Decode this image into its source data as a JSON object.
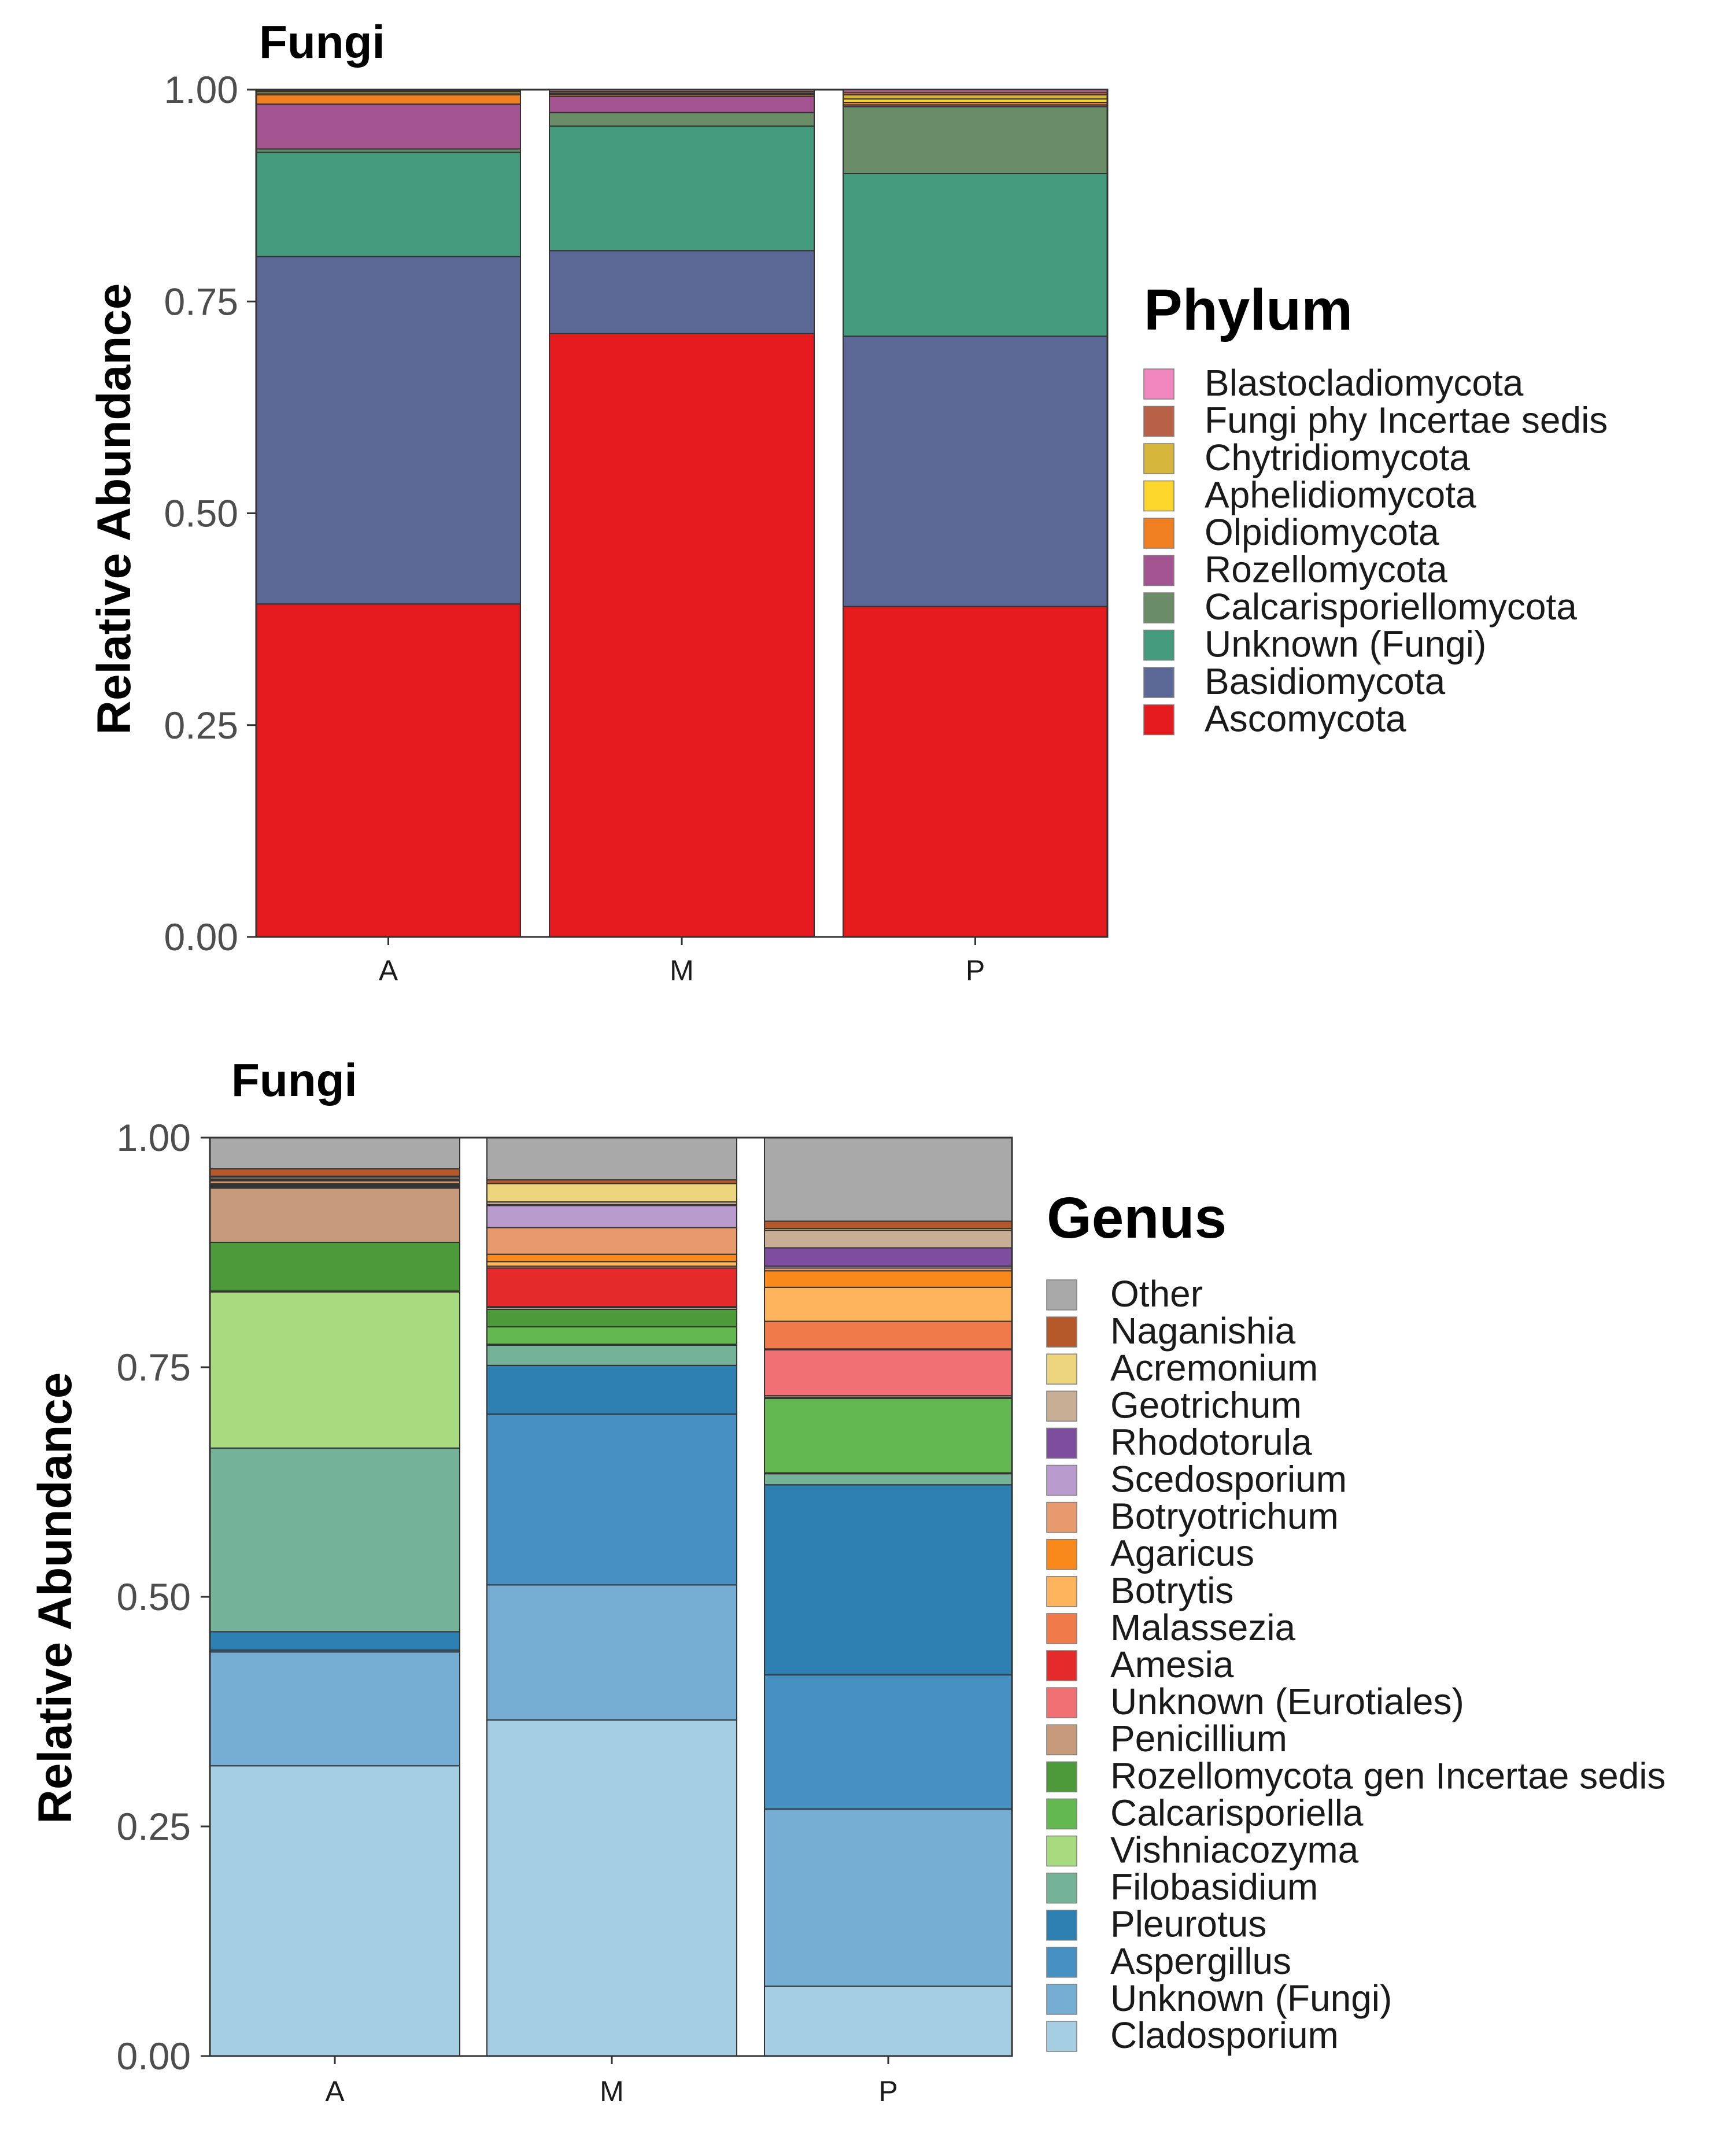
{
  "chart_data": [
    {
      "type": "bar",
      "stacked": true,
      "title": "Fungi",
      "ylabel": "Relative Abundance",
      "xlabel": "",
      "ylim": [
        0,
        1
      ],
      "yticks": [
        "0.00",
        "0.25",
        "0.50",
        "0.75",
        "1.00"
      ],
      "categories": [
        "A",
        "M",
        "P"
      ],
      "legend_title": "Phylum",
      "legend_position": "right",
      "series": [
        {
          "name": "Ascomycota",
          "color": "#E41A1C",
          "values": [
            0.393,
            0.712,
            0.39
          ]
        },
        {
          "name": "Basidiomycota",
          "color": "#5B6795",
          "values": [
            0.41,
            0.098,
            0.319
          ]
        },
        {
          "name": "Unknown (Fungi)",
          "color": "#449B7D",
          "values": [
            0.123,
            0.147,
            0.192
          ]
        },
        {
          "name": "Calcarisporiellomycota",
          "color": "#6A8C67",
          "values": [
            0.004,
            0.016,
            0.079
          ]
        },
        {
          "name": "Rozellomycota",
          "color": "#A25390",
          "values": [
            0.053,
            0.019,
            0.002
          ]
        },
        {
          "name": "Olpidiomycota",
          "color": "#F07F22",
          "values": [
            0.011,
            0.002,
            0.003
          ]
        },
        {
          "name": "Aphelidiomycota",
          "color": "#FDD72B",
          "values": [
            0.002,
            0.001,
            0.004
          ]
        },
        {
          "name": "Chytridiomycota",
          "color": "#D5B63B",
          "values": [
            0.002,
            0.001,
            0.005
          ]
        },
        {
          "name": "Fungi phy Incertae sedis",
          "color": "#B86147",
          "values": [
            0.001,
            0.002,
            0.003
          ]
        },
        {
          "name": "Blastocladiomycota",
          "color": "#F287BF",
          "values": [
            0.001,
            0.002,
            0.003
          ]
        }
      ]
    },
    {
      "type": "bar",
      "stacked": true,
      "title": "Fungi",
      "ylabel": "Relative Abundance",
      "xlabel": "",
      "ylim": [
        0,
        1
      ],
      "yticks": [
        "0.00",
        "0.25",
        "0.50",
        "0.75",
        "1.00"
      ],
      "categories": [
        "A",
        "M",
        "P"
      ],
      "legend_title": "Genus",
      "legend_position": "right",
      "series": [
        {
          "name": "Cladosporium",
          "color": "#A6CEE3",
          "values": [
            0.316,
            0.366,
            0.076
          ]
        },
        {
          "name": "Unknown (Fungi)",
          "color": "#76ADD3",
          "values": [
            0.124,
            0.147,
            0.193
          ]
        },
        {
          "name": "Aspergillus",
          "color": "#4690C2",
          "values": [
            0.002,
            0.186,
            0.146
          ]
        },
        {
          "name": "Pleurotus",
          "color": "#2E80B2",
          "values": [
            0.02,
            0.053,
            0.207
          ]
        },
        {
          "name": "Filobasidium",
          "color": "#74B398",
          "values": [
            0.2,
            0.022,
            0.012
          ]
        },
        {
          "name": "Vishniacozyma",
          "color": "#A8DA80",
          "values": [
            0.17,
            0.001,
            0.001
          ]
        },
        {
          "name": "Calcarisporiella",
          "color": "#63B84F",
          "values": [
            0.001,
            0.019,
            0.081
          ]
        },
        {
          "name": "Rozellomycota gen Incertae sedis",
          "color": "#4D9A3B",
          "values": [
            0.053,
            0.019,
            0.001
          ]
        },
        {
          "name": "Penicillium",
          "color": "#C69A7A",
          "values": [
            0.059,
            0.002,
            0.002
          ]
        },
        {
          "name": "Unknown (Eurotiales)",
          "color": "#F07073",
          "values": [
            0.001,
            0.001,
            0.05
          ]
        },
        {
          "name": "Amesia",
          "color": "#E42A2A",
          "values": [
            0.001,
            0.042,
            0.001
          ]
        },
        {
          "name": "Malassezia",
          "color": "#F07A4A",
          "values": [
            0.001,
            0.002,
            0.03
          ]
        },
        {
          "name": "Botrytis",
          "color": "#FDB45C",
          "values": [
            0.001,
            0.005,
            0.037
          ]
        },
        {
          "name": "Agaricus",
          "color": "#F8891A",
          "values": [
            0.001,
            0.008,
            0.018
          ]
        },
        {
          "name": "Botryotrichum",
          "color": "#E79A6D",
          "values": [
            0.003,
            0.029,
            0.003
          ]
        },
        {
          "name": "Scedosporium",
          "color": "#B99CCD",
          "values": [
            0.001,
            0.024,
            0.002
          ]
        },
        {
          "name": "Rhodotorula",
          "color": "#7D4E9E",
          "values": [
            0.001,
            0.001,
            0.02
          ]
        },
        {
          "name": "Geotrichum",
          "color": "#C8AE95",
          "values": [
            0.002,
            0.003,
            0.019
          ]
        },
        {
          "name": "Acremonium",
          "color": "#EDD57D",
          "values": [
            0.001,
            0.02,
            0.002
          ]
        },
        {
          "name": "Naganishia",
          "color": "#B5582A",
          "values": [
            0.008,
            0.004,
            0.008
          ]
        },
        {
          "name": "Other",
          "color": "#A9A9A9",
          "values": [
            0.034,
            0.046,
            0.091
          ]
        }
      ]
    }
  ]
}
